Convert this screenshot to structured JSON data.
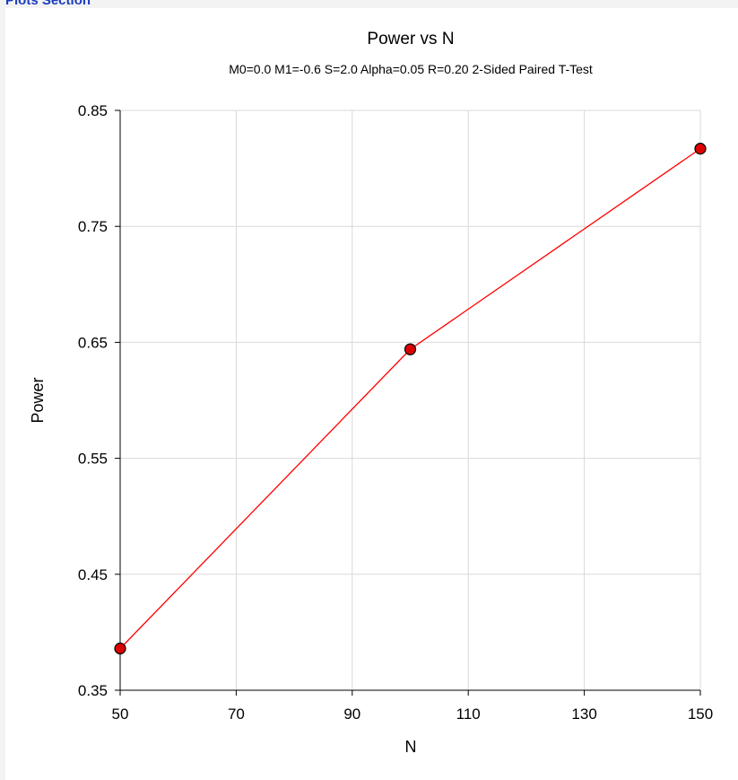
{
  "section": {
    "title": "Plots Section"
  },
  "chart_data": {
    "type": "line",
    "title": "Power vs N",
    "subtitle": "M0=0.0 M1=-0.6 S=2.0 Alpha=0.05 R=0.20 2-Sided Paired T-Test",
    "xlabel": "N",
    "ylabel": "Power",
    "xlim": [
      50,
      150
    ],
    "ylim": [
      0.35,
      0.85
    ],
    "xticks": [
      "50",
      "70",
      "90",
      "110",
      "130",
      "150"
    ],
    "yticks": [
      "0.35",
      "0.45",
      "0.55",
      "0.65",
      "0.75",
      "0.85"
    ],
    "grid": true,
    "x": [
      50,
      100,
      150
    ],
    "y": [
      0.386,
      0.644,
      0.817
    ],
    "line_color": "#ff0000",
    "marker_color": "#dd0000"
  }
}
